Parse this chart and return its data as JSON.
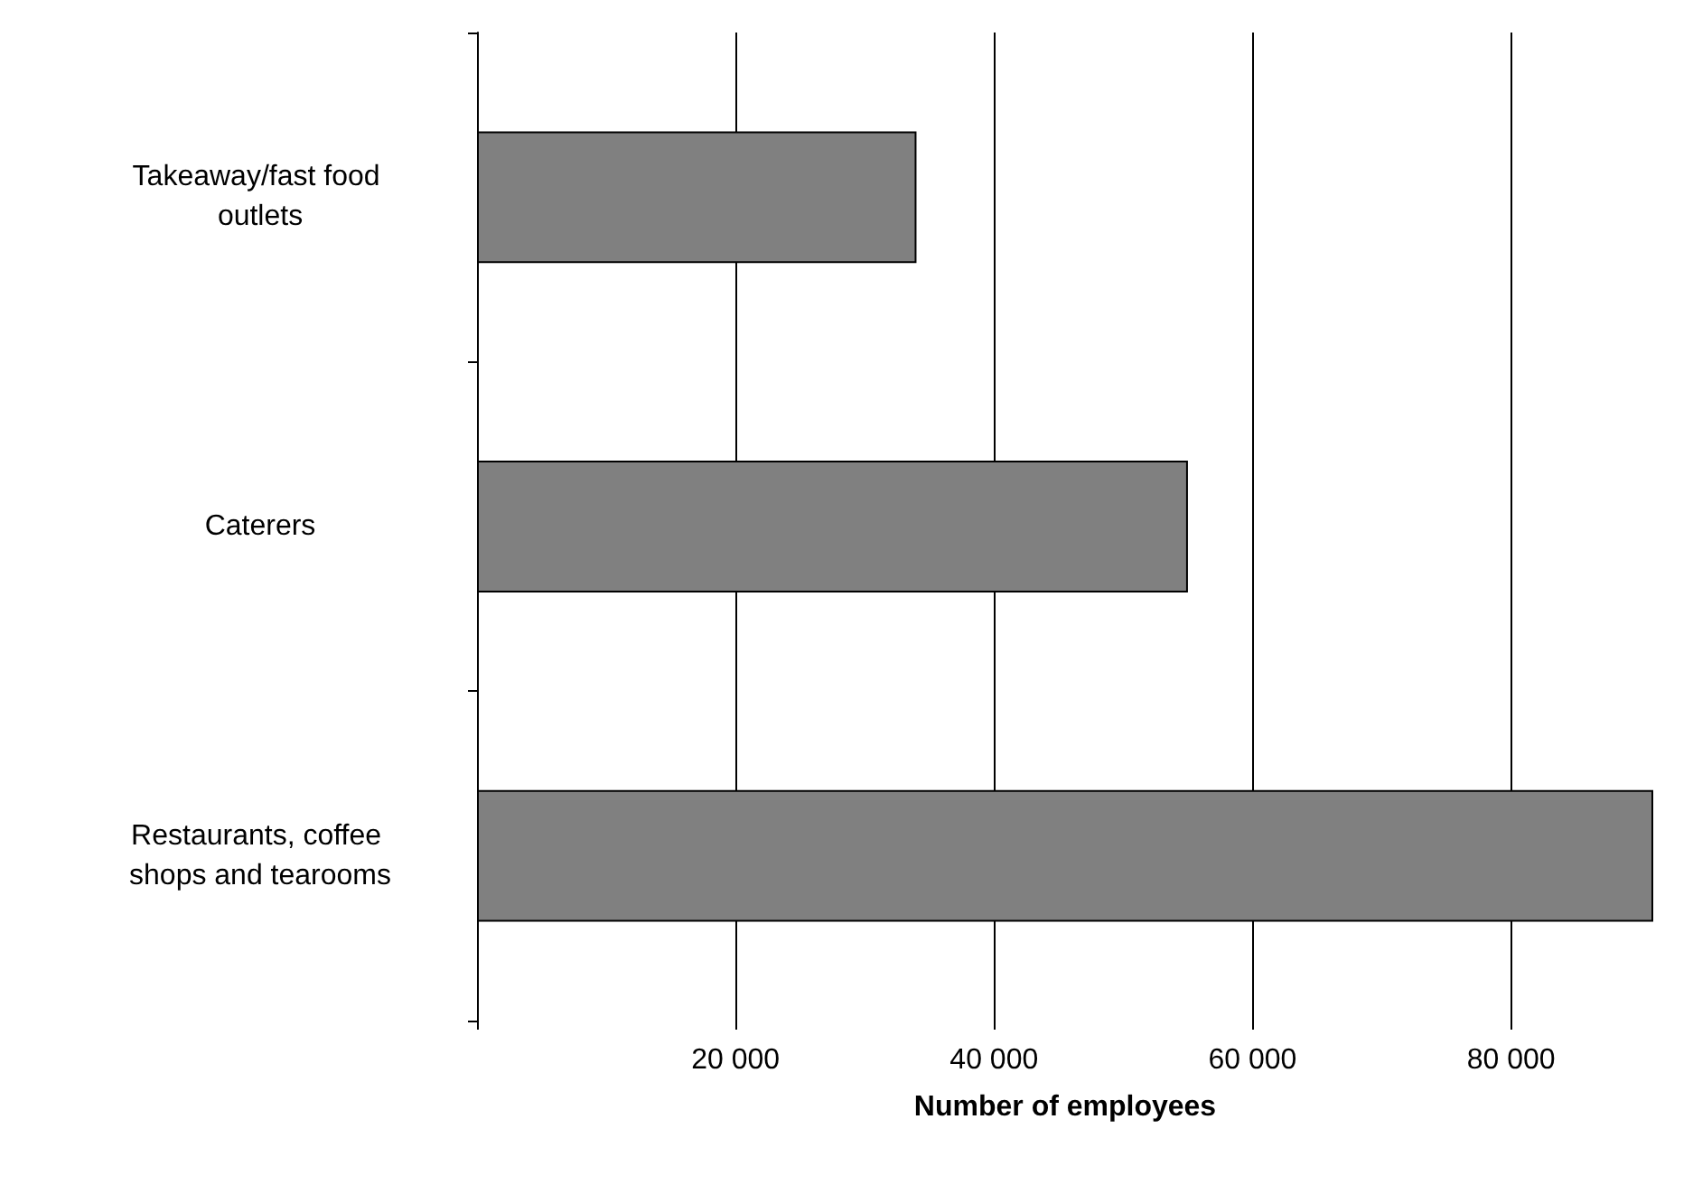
{
  "chart_data": {
    "type": "bar",
    "orientation": "horizontal",
    "xlabel": "Number of employees",
    "categories": [
      "Takeaway/fast food outlets",
      "Caterers",
      "Restaurants, coffee shops and tearooms"
    ],
    "values": [
      34000,
      55000,
      91000
    ],
    "color": "#808080",
    "xlim": [
      0,
      91000
    ],
    "xticks": [
      {
        "value": 0,
        "label": null
      },
      {
        "value": 20000,
        "label": "20 000"
      },
      {
        "value": 40000,
        "label": "40 000"
      },
      {
        "value": 60000,
        "label": "60 000"
      },
      {
        "value": 80000,
        "label": "80 000"
      }
    ],
    "grid": "x"
  }
}
